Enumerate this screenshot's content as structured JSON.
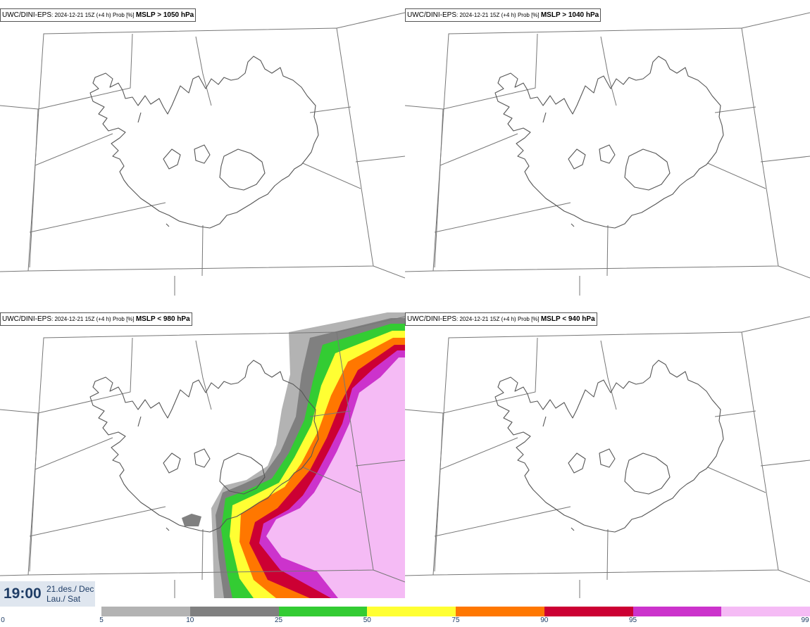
{
  "panels": [
    {
      "model": "UWC/DINI-EPS",
      "meta": ": 2024-12-21 15Z (+4 h) Prob [%] ",
      "param": "MSLP > 1050 hPa"
    },
    {
      "model": "UWC/DINI-EPS",
      "meta": ": 2024-12-21 15Z (+4 h) Prob [%] ",
      "param": "MSLP > 1040 hPa"
    },
    {
      "model": "UWC/DINI-EPS",
      "meta": ": 2024-12-21 15Z (+4 h) Prob [%] ",
      "param": "MSLP < 980 hPa"
    },
    {
      "model": "UWC/DINI-EPS",
      "meta": ": 2024-12-21 15Z (+4 h) Prob [%] ",
      "param": "MSLP < 940 hPa"
    }
  ],
  "valid_time": {
    "time": "19:00",
    "date_line1": "21.des./ Dec",
    "date_line2": "Lau./ Sat"
  },
  "legend": {
    "ticks": [
      "0",
      "5",
      "10",
      "25",
      "50",
      "75",
      "90",
      "95",
      "99"
    ],
    "colors": [
      "#b3b3b3",
      "#808080",
      "#33cc33",
      "#ffff33",
      "#ff7700",
      "#cc0033",
      "#cc33cc",
      "#f5bbf5"
    ]
  },
  "map_colors": {
    "coast": "#555555",
    "borders": "#777777"
  }
}
